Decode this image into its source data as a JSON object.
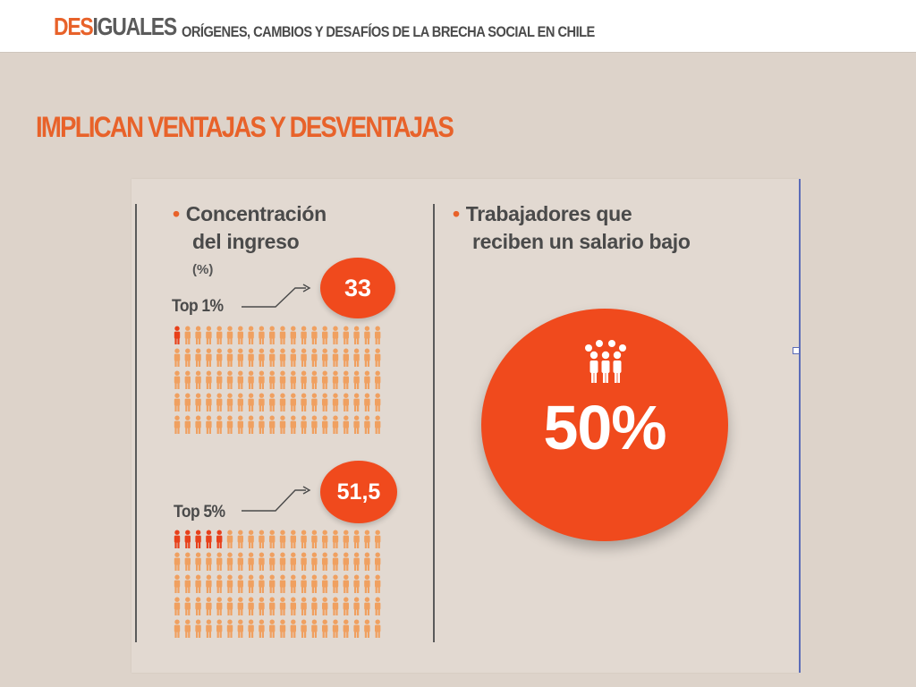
{
  "header": {
    "brand_part1": "DES",
    "brand_part2": "IGUALES",
    "subtitle": "ORÍGENES, CAMBIOS Y DESAFÍOS DE LA BRECHA SOCIAL EN CHILE"
  },
  "slide": {
    "title": "IMPLICAN VENTAJAS Y DESVENTAJAS"
  },
  "infographic": {
    "left_panel": {
      "heading_line1": "Concentración",
      "heading_line2": "del ingreso",
      "unit": "(%)",
      "groups": [
        {
          "label": "Top 1%",
          "value": "33",
          "highlighted": 1,
          "total_icons": 100
        },
        {
          "label": "Top 5%",
          "value": "51,5",
          "highlighted": 5,
          "total_icons": 100
        }
      ]
    },
    "right_panel": {
      "heading_line1": "Trabajadores que",
      "heading_line2": "reciben un salario bajo",
      "value": "50%",
      "icon": "people-group-icon"
    }
  },
  "colors": {
    "accent": "#e8622a",
    "circle": "#f04a1d",
    "person_normal": "#f0a060",
    "person_highlight": "#e8401a",
    "text_dark": "#4a4a4a"
  }
}
